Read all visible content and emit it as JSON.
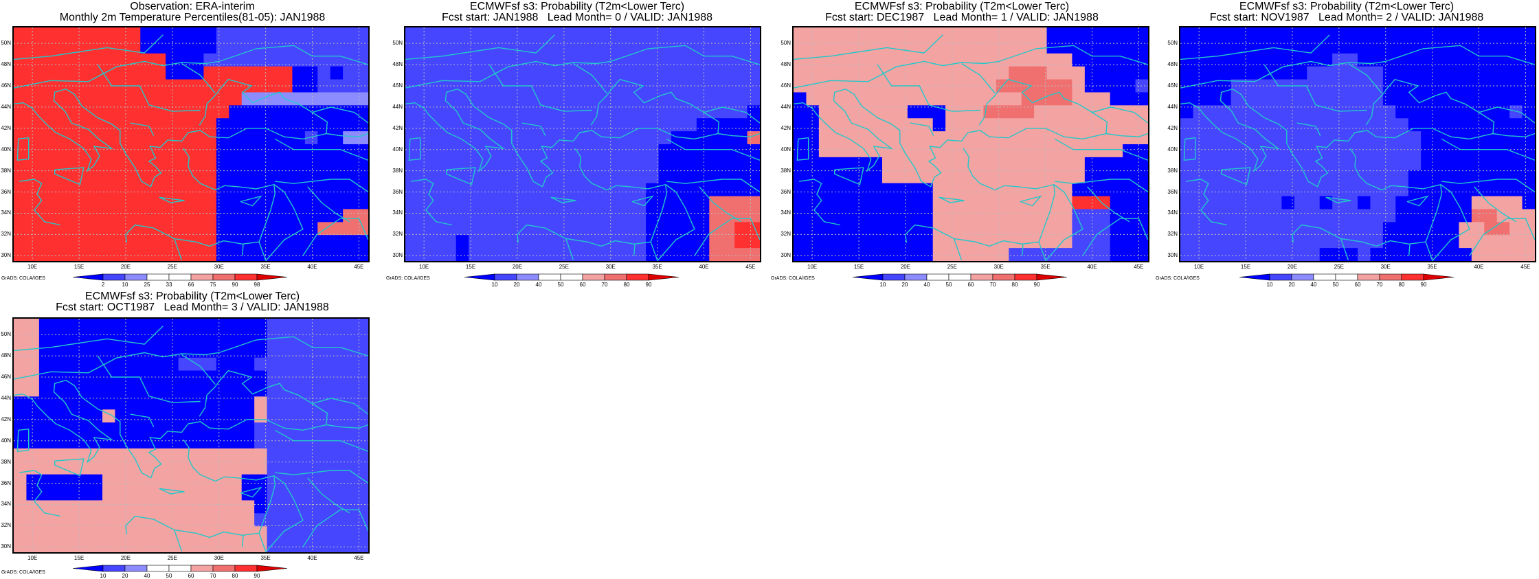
{
  "colors": {
    "coast": "#22c8c8",
    "grid": "#bbbbbb",
    "frame": "#000000",
    "scale": [
      "#0000ff",
      "#4646ff",
      "#8c8cff",
      "#ffffff",
      "#ffffff",
      "#f4a3a3",
      "#f07070",
      "#ff3030",
      "#dd0000"
    ]
  },
  "axes": {
    "lat_labels": [
      "50N",
      "48N",
      "46N",
      "44N",
      "42N",
      "40N",
      "38N",
      "36N",
      "34N",
      "32N",
      "30N"
    ],
    "lon_labels": [
      "10E",
      "15E",
      "20E",
      "25E",
      "30E",
      "35E",
      "40E",
      "45E"
    ]
  },
  "credit": "GrADS: COLA/IGES",
  "panels": [
    {
      "id": "obs",
      "title1": "Observation: ERA-interim",
      "title2": "Monthly 2m Temperature Percentiles(81-05): JAN1988",
      "scale_labels": [
        "2",
        "10",
        "25",
        "33",
        "66",
        "75",
        "90",
        "98"
      ],
      "grid": [
        "7777777777000000111111111111",
        "7777777777000000111111111111",
        "7777777777770001111111111111",
        "7777777777770007777777001011",
        "7777777777777777777777001111",
        "7777777777777777772222222222",
        "7777777777777777700000000000",
        "7777777777777777000000000000",
        "7777777777777777000000010022",
        "7777777777777777000000000000",
        "7777777777777777000000000000",
        "7777777777777777000000000000",
        "7777777777777777000000000000",
        "7777777777777777000000000000",
        "7777777777777777000000000066",
        "7777777777777777000000006666",
        "7777777777777777000000000000",
        "7777777777777777000000000000"
      ]
    },
    {
      "id": "lead0",
      "title1": "ECMWFsf s3: Probability (T2m<Lower Terc)",
      "title2": "Fcst start: JAN1988   Lead Month= 0 / VALID: JAN1988",
      "scale_labels": [
        "10",
        "20",
        "40",
        "50",
        "60",
        "70",
        "80",
        "90"
      ],
      "grid": [
        "1111111111111111111111111111",
        "1111111111111111111111111111",
        "1111111111111111111111111111",
        "1111111111111111111111111111",
        "1111111111111111111111111111",
        "1111111111111111111111111111",
        "1111111111111111111111111110",
        "1111111111111111111111100000",
        "1111111111111111111110000006",
        "1111111111111111111100000000",
        "1111111111111111111100000000",
        "1111111111111111111100000000",
        "1111111111111111111000000000",
        "1111111111111111111000006666",
        "1111111111111111111000006666",
        "1111111111111111111000006677",
        "1111011111111111111000006677",
        "1111011111111111111000006666"
      ]
    },
    {
      "id": "lead1",
      "title1": "ECMWFsf s3: Probability (T2m<Lower Terc)",
      "title2": "Fcst start: DEC1987   Lead Month= 1 / VALID: JAN1988",
      "scale_labels": [
        "10",
        "20",
        "40",
        "50",
        "60",
        "70",
        "80",
        "90"
      ],
      "grid": [
        "5555555555555555555500000000",
        "5555555555555555555500000000",
        "5555555555555555555555000000",
        "5555555555555555566655500000",
        "5555555555555555666666500001",
        "0555555555555555556666555000",
        "0055555550005556666555555555",
        "0055555555505555555555555555",
        "0055555555555555555555555555",
        "0055555555555555555555555500",
        "0000000555555555555555500000",
        "0000000555555555555555500000",
        "0000000000055555555555000000",
        "0000000000055555555555777000",
        "0000000000055555555555111000",
        "0000000000055555555555111000",
        "0000000000055555555555111000",
        "0000000000055555511111111000"
      ]
    },
    {
      "id": "lead2",
      "title1": "ECMWFsf s3: Probability (T2m<Lower Terc)",
      "title2": "Fcst start: NOV1987   Lead Month= 2 / VALID: JAN1988",
      "scale_labels": [
        "10",
        "20",
        "40",
        "50",
        "60",
        "70",
        "80",
        "90"
      ],
      "grid": [
        "0000000000000000000000000000",
        "0000000000000000000000000000",
        "0000000000001100000000000000",
        "0000000000111111000000000000",
        "0000111111111111000000000000",
        "0000111111111111000000000000",
        "0111111111111111100000000010",
        "1111111111111111110000000000",
        "1111111111111111111000000000",
        "1111111111111111111000000000",
        "1111111111111111111000000000",
        "1111111111111111110000000000",
        "1111111111111111110000000000",
        "1111111101101101100000055550",
        "1111111111111111100000066555",
        "1111111111111111000000556655",
        "1111111111111111000000555555",
        "1111111111100010000000055555"
      ]
    },
    {
      "id": "lead3",
      "title1": "ECMWFsf s3: Probability (T2m<Lower Terc)",
      "title2": "Fcst start: OCT1987   Lead Month= 3 / VALID: JAN1988",
      "scale_labels": [
        "10",
        "20",
        "40",
        "50",
        "60",
        "70",
        "80",
        "90"
      ],
      "grid": [
        "5500000000000000000011111111",
        "5500000000000000000011111111",
        "5500000000000000000011111111",
        "5500000000000111000111111111",
        "5500000000000000000011111111",
        "5500000000000000000011111111",
        "0000000000000000000511111111",
        "0000000500000000000511111111",
        "0000000000000000000111111111",
        "0000000000000000000111111111",
        "5555555555555555555511111111",
        "5555555555555555555511111111",
        "5000000555555555550011111111",
        "5000000555555555550011111111",
        "5555555555555555555011111111",
        "5555555555555555555111111111",
        "5555555555555555555511111111",
        "5555555555555555555511111111"
      ]
    }
  ]
}
